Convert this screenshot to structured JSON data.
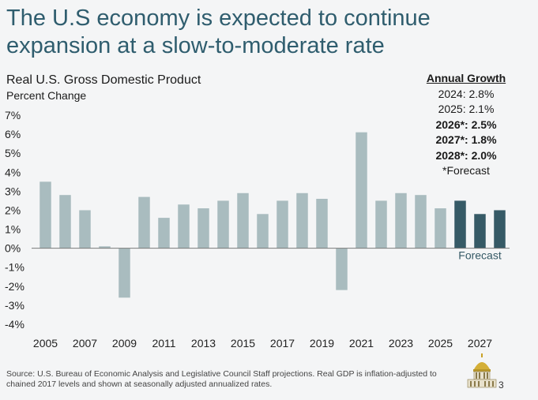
{
  "slide": {
    "title": "The U.S economy is expected to continue expansion at a slow-to-moderate rate",
    "page_number": "3",
    "source_note": "Source: U.S. Bureau of Economic Analysis and Legislative Council Staff projections. Real GDP is inflation-adjusted to chained 2017 levels and shown at seasonally adjusted annualized rates."
  },
  "growth_box": {
    "heading": "Annual Growth",
    "items": [
      {
        "text": "2024: 2.8%",
        "bold": false
      },
      {
        "text": "2025: 2.1%",
        "bold": false
      },
      {
        "text": "2026*: 2.5%",
        "bold": true
      },
      {
        "text": "2027*: 1.8%",
        "bold": true
      },
      {
        "text": "2028*: 2.0%",
        "bold": true
      }
    ],
    "footnote": "*Forecast"
  },
  "colors": {
    "historical": "#a9bcbf",
    "forecast": "#365a66",
    "title": "#2f5d6e",
    "background": "#f4f5f6"
  },
  "chart_data": {
    "type": "bar",
    "title": "Real U.S. Gross Domestic Product",
    "subtitle": "Percent Change",
    "xlabel": "",
    "ylabel": "Percent Change",
    "ylim": [
      -4,
      7
    ],
    "ytick_step": 1,
    "ytick_labels": [
      "7%",
      "6%",
      "5%",
      "4%",
      "3%",
      "2%",
      "1%",
      "0%",
      "-1%",
      "-2%",
      "-3%",
      "-4%"
    ],
    "categories": [
      "2005",
      "2006",
      "2007",
      "2008",
      "2009",
      "2010",
      "2011",
      "2012",
      "2013",
      "2014",
      "2015",
      "2016",
      "2017",
      "2018",
      "2019",
      "2020",
      "2021",
      "2022",
      "2023",
      "2024",
      "2025",
      "2026",
      "2027",
      "2028"
    ],
    "values": [
      3.5,
      2.8,
      2.0,
      0.1,
      -2.6,
      2.7,
      1.6,
      2.3,
      2.1,
      2.5,
      2.9,
      1.8,
      2.5,
      2.9,
      2.6,
      -2.2,
      6.1,
      2.5,
      2.9,
      2.8,
      2.1,
      2.5,
      1.8,
      2.0
    ],
    "forecast": [
      false,
      false,
      false,
      false,
      false,
      false,
      false,
      false,
      false,
      false,
      false,
      false,
      false,
      false,
      false,
      false,
      false,
      false,
      false,
      false,
      false,
      true,
      true,
      true
    ],
    "x_tick_labels": [
      "2005",
      "2007",
      "2009",
      "2011",
      "2013",
      "2015",
      "2017",
      "2019",
      "2021",
      "2023",
      "2025",
      "2027"
    ],
    "annotation": "Forecast",
    "grid": false
  }
}
